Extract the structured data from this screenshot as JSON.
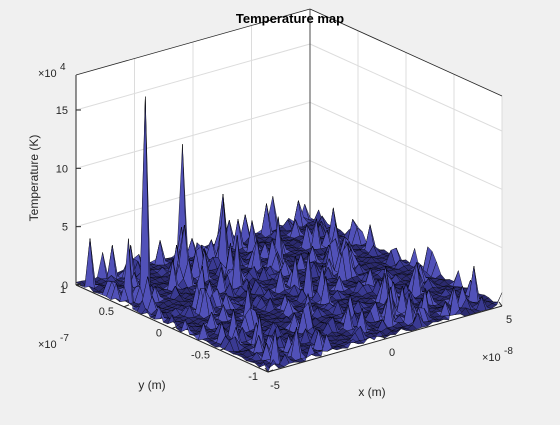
{
  "chart_data": {
    "type": "surface",
    "title": "Temperature map",
    "xlabel": "x (m)",
    "ylabel": "y (m)",
    "zlabel": "Temperature (K)",
    "x_multiplier": "×10",
    "x_multiplier_exp": "-8",
    "y_multiplier": "×10",
    "y_multiplier_exp": "-7",
    "z_multiplier": "×10",
    "z_multiplier_exp": "4",
    "xlim": [
      -5,
      5
    ],
    "ylim": [
      -1,
      1
    ],
    "zlim": [
      0,
      18
    ],
    "x_ticks": [
      {
        "value": -5,
        "label": "-5"
      },
      {
        "value": 0,
        "label": "0"
      },
      {
        "value": 5,
        "label": "5"
      }
    ],
    "y_ticks": [
      {
        "value": -1,
        "label": "-1"
      },
      {
        "value": -0.5,
        "label": "-0.5"
      },
      {
        "value": 0,
        "label": "0"
      },
      {
        "value": 0.5,
        "label": "0.5"
      },
      {
        "value": 1,
        "label": "1"
      }
    ],
    "z_ticks": [
      {
        "value": 0,
        "label": "0"
      },
      {
        "value": 5,
        "label": "5"
      },
      {
        "value": 10,
        "label": "10"
      },
      {
        "value": 15,
        "label": "15"
      }
    ],
    "surface_color": "#2b2a6e",
    "edge_color": "#000000",
    "grid": true,
    "baseline_z": 0.35,
    "peaks": [
      {
        "x": -4.0,
        "y": 0.5,
        "z": 17.5
      },
      {
        "x": -5.0,
        "y": 0.45,
        "z": 6.0
      },
      {
        "x": -4.7,
        "y": 0.9,
        "z": 4.2
      },
      {
        "x": -2.0,
        "y": 0.6,
        "z": 5.0
      },
      {
        "x": -0.5,
        "y": 1.0,
        "z": 9.5
      },
      {
        "x": -3.0,
        "y": 0.2,
        "z": 3.5
      },
      {
        "x": -1.0,
        "y": 0.3,
        "z": 4.5
      },
      {
        "x": 0.0,
        "y": 0.7,
        "z": 5.5
      },
      {
        "x": 1.5,
        "y": 0.5,
        "z": 4.0
      },
      {
        "x": -2.5,
        "y": -0.2,
        "z": 3.0
      },
      {
        "x": 0.5,
        "y": -0.1,
        "z": 3.8
      },
      {
        "x": 2.5,
        "y": 0.0,
        "z": 3.0
      },
      {
        "x": -1.5,
        "y": -0.6,
        "z": 2.5
      },
      {
        "x": 3.5,
        "y": -0.5,
        "z": 2.8
      },
      {
        "x": 4.5,
        "y": -0.8,
        "z": 3.0
      },
      {
        "x": 1.0,
        "y": 0.9,
        "z": 4.8
      },
      {
        "x": -3.5,
        "y": 0.8,
        "z": 3.2
      },
      {
        "x": 2.0,
        "y": -0.7,
        "z": 2.2
      }
    ]
  }
}
